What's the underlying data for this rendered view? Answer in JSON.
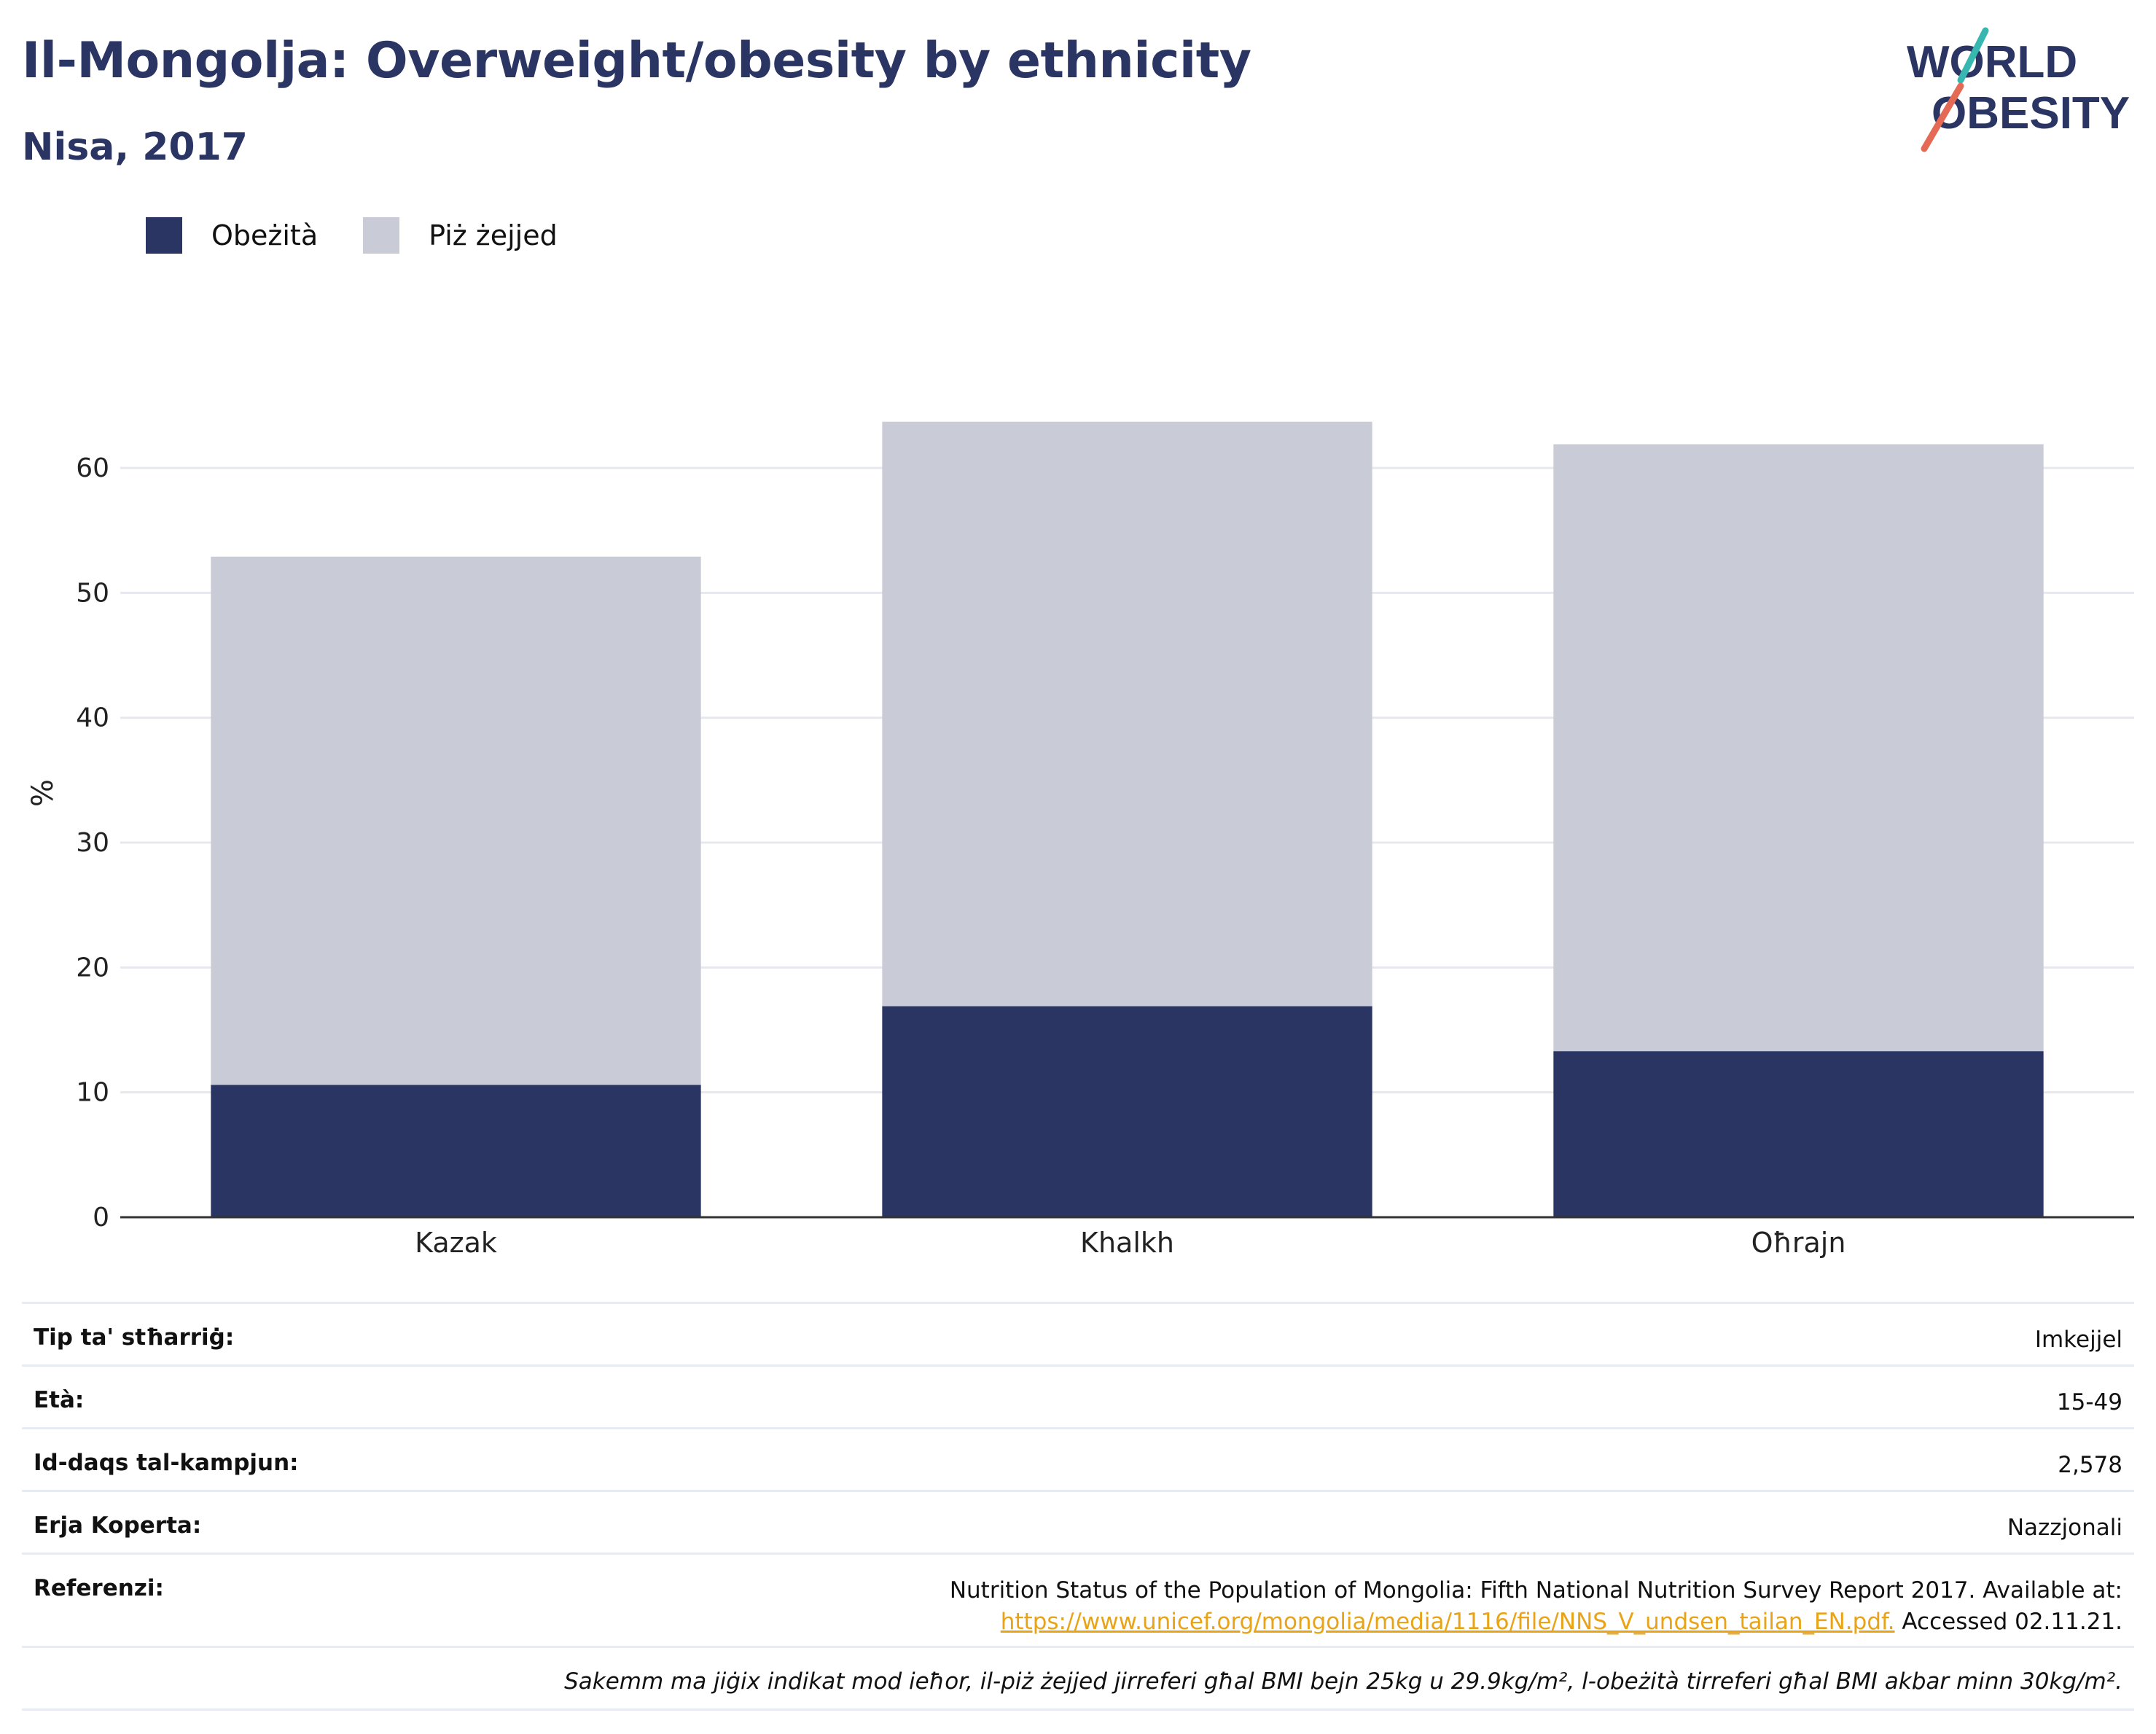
{
  "header": {
    "title": "Il-Mongolja: Overweight/obesity by ethnicity",
    "subtitle": "Nisa, 2017"
  },
  "logo": {
    "line1": "WORLD",
    "line2": "OBESITY"
  },
  "legend": [
    {
      "label": "Obeżità",
      "color": "#2a3564"
    },
    {
      "label": "Piż żejjed",
      "color": "#c9ccd7"
    }
  ],
  "chart_data": {
    "type": "bar",
    "stacked": true,
    "categories": [
      "Kazak",
      "Khalkh",
      "Oħrajn"
    ],
    "series": [
      {
        "name": "Obeżità",
        "values": [
          10.6,
          16.9,
          13.3
        ],
        "color": "#2a3564"
      },
      {
        "name": "Piż żejjed",
        "values": [
          42.3,
          46.8,
          48.6
        ],
        "color": "#c9ccd7"
      }
    ],
    "ylabel": "%",
    "ylim": [
      0,
      68
    ],
    "yticks": [
      0,
      10,
      20,
      30,
      40,
      50,
      60
    ],
    "grid": true
  },
  "meta": {
    "survey_type_label": "Tip ta' stħarriġ:",
    "survey_type_value": "Imkejjel",
    "age_label": "Età:",
    "age_value": "15-49",
    "sample_label": "Id-daqs tal-kampjun:",
    "sample_value": "2,578",
    "area_label": "Erja Koperta:",
    "area_value": "Nazzjonali",
    "ref_label": "Referenzi:",
    "ref_line1": "Nutrition Status of the Population of Mongolia: Fifth National Nutrition Survey Report 2017. Available at:",
    "ref_link": "https://www.unicef.org/mongolia/media/1116/file/NNS_V_undsen_tailan_EN.pdf.",
    "ref_accessed": " Accessed 02.11.21.",
    "note": "Sakemm ma jiġix indikat mod ieħor, il-piż żejjed jirreferi għal BMI bejn 25kg u 29.9kg/m², l-obeżità tirreferi għal BMI akbar minn 30kg/m²."
  }
}
